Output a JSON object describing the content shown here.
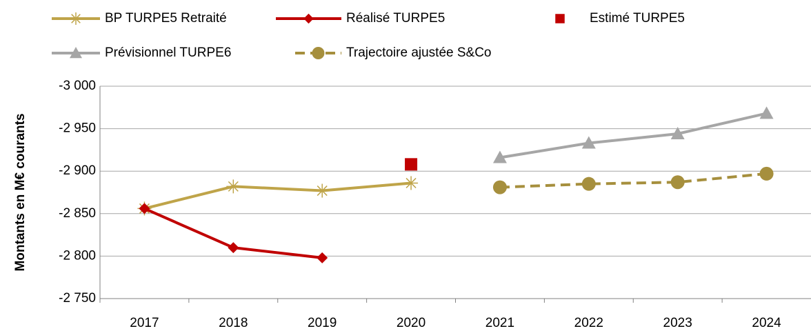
{
  "chart_data": {
    "type": "line",
    "y_axis_label": "Montants en M€ courants",
    "categories": [
      "2017",
      "2018",
      "2019",
      "2020",
      "2021",
      "2022",
      "2023",
      "2024"
    ],
    "series": [
      {
        "name": "BP TURPE5 Retraité",
        "color": "#bfa449",
        "marker": "asterisk",
        "dash": false,
        "line": true,
        "values": [
          -2856,
          -2882,
          -2877,
          -2886,
          null,
          null,
          null,
          null
        ]
      },
      {
        "name": "Réalisé TURPE5",
        "color": "#c00000",
        "marker": "diamond",
        "dash": false,
        "line": true,
        "values": [
          -2856,
          -2810,
          -2798,
          null,
          null,
          null,
          null,
          null
        ]
      },
      {
        "name": "Estimé TURPE5",
        "color": "#c00000",
        "marker": "square",
        "dash": false,
        "line": false,
        "values": [
          null,
          null,
          null,
          -2908,
          null,
          null,
          null,
          null
        ]
      },
      {
        "name": "Prévisionnel TURPE6",
        "color": "#a6a6a6",
        "marker": "triangle",
        "dash": false,
        "line": true,
        "values": [
          null,
          null,
          null,
          null,
          -2916,
          -2933,
          -2944,
          -2968
        ]
      },
      {
        "name": "Trajectoire ajustée S&Co",
        "color": "#a68f3d",
        "marker": "circle",
        "dash": true,
        "line": true,
        "values": [
          null,
          null,
          null,
          null,
          -2881,
          -2885,
          -2887,
          -2897
        ]
      }
    ],
    "ylim": [
      -2750,
      -3000
    ],
    "yticks": [
      {
        "value": -3000,
        "label": "-3 000"
      },
      {
        "value": -2950,
        "label": "-2 950"
      },
      {
        "value": -2900,
        "label": "-2 900"
      },
      {
        "value": -2850,
        "label": "-2 850"
      },
      {
        "value": -2800,
        "label": "-2 800"
      },
      {
        "value": -2750,
        "label": "-2 750"
      }
    ],
    "grid": true
  }
}
